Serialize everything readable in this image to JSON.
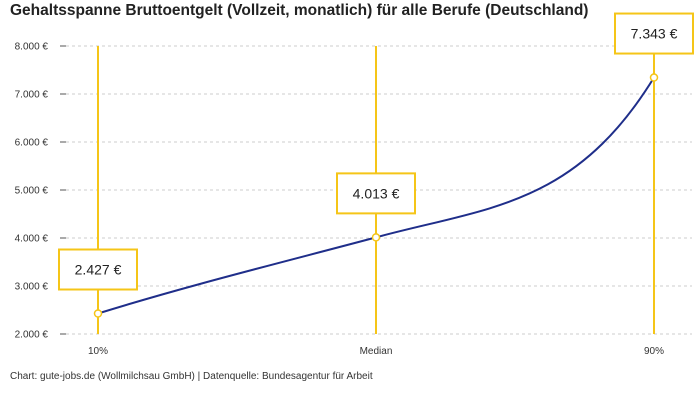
{
  "chart_data": {
    "type": "line",
    "title": "Gehaltsspanne Bruttoentgelt (Vollzeit, monatlich) für alle Berufe (Deutschland)",
    "categories": [
      "10%",
      "Median",
      "90%"
    ],
    "values": [
      2427,
      4013,
      7343
    ],
    "value_labels": [
      "2.427 €",
      "4.013 €",
      "7.343 €"
    ],
    "ylim": [
      2000,
      8000
    ],
    "yticks": [
      {
        "value": 2000,
        "label": "2.000 €"
      },
      {
        "value": 3000,
        "label": "3.000 €"
      },
      {
        "value": 4000,
        "label": "4.000 €"
      },
      {
        "value": 5000,
        "label": "5.000 €"
      },
      {
        "value": 6000,
        "label": "6.000 €"
      },
      {
        "value": 7000,
        "label": "7.000 €"
      },
      {
        "value": 8000,
        "label": "8.000 €"
      }
    ],
    "grid": true,
    "colors": {
      "line": "#1f2e8a",
      "marker": "#f5c518",
      "grid": "#cccccc"
    }
  },
  "footer": "Chart: gute-jobs.de (Wollmilchsau GmbH) | Datenquelle: Bundesagentur für Arbeit"
}
